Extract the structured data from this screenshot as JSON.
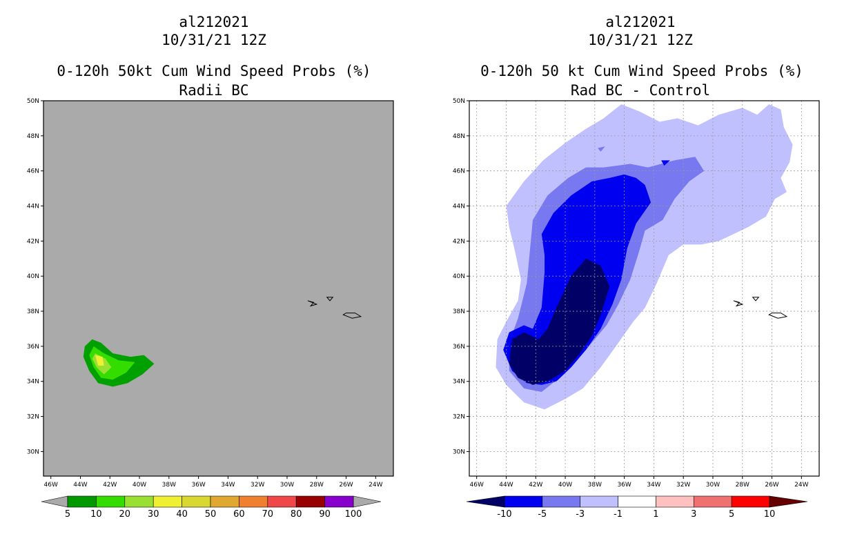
{
  "chart_data": [
    {
      "type": "filled-contour-map",
      "storm_id": "al212021",
      "valid_time": "10/31/21 12Z",
      "title": "0-120h 50kt Cum Wind Speed Probs (%)",
      "subtitle": "Radii BC",
      "lat_ticks": [
        "30N",
        "32N",
        "34N",
        "36N",
        "38N",
        "40N",
        "42N",
        "44N",
        "46N",
        "48N",
        "50N"
      ],
      "lon_ticks": [
        "46W",
        "44W",
        "42W",
        "40W",
        "38W",
        "36W",
        "34W",
        "32W",
        "30W",
        "28W",
        "26W",
        "24W"
      ],
      "lon_range_deg_w": [
        46.5,
        22.8
      ],
      "lat_range_deg_n": [
        28.6,
        50.0
      ],
      "colorbar": {
        "labels": [
          "5",
          "10",
          "20",
          "30",
          "40",
          "50",
          "60",
          "70",
          "80",
          "90",
          "100"
        ],
        "colors": [
          "#009900",
          "#33dd00",
          "#99e033",
          "#f0f033",
          "#d8d830",
          "#e0a830",
          "#f08030",
          "#f04848",
          "#990000",
          "#8800cc"
        ],
        "end_color": "#aaaaaa"
      },
      "contours": [
        {
          "level": 5,
          "color": "#00a000",
          "points": [
            [
              43.2,
              36.4
            ],
            [
              42.6,
              36.2
            ],
            [
              41.8,
              35.6
            ],
            [
              40.6,
              35.4
            ],
            [
              39.7,
              35.5
            ],
            [
              39.0,
              35.0
            ],
            [
              39.8,
              34.4
            ],
            [
              40.8,
              33.9
            ],
            [
              41.8,
              33.7
            ],
            [
              42.8,
              33.9
            ],
            [
              43.4,
              34.6
            ],
            [
              43.8,
              35.4
            ],
            [
              43.7,
              36.0
            ]
          ]
        },
        {
          "level": 10,
          "color": "#33dd00",
          "points": [
            [
              43.1,
              36.0
            ],
            [
              42.4,
              35.6
            ],
            [
              41.4,
              35.2
            ],
            [
              40.3,
              35.1
            ],
            [
              40.9,
              34.5
            ],
            [
              41.8,
              34.1
            ],
            [
              42.6,
              34.2
            ],
            [
              43.1,
              34.8
            ],
            [
              43.4,
              35.5
            ]
          ]
        },
        {
          "level": 20,
          "color": "#99e033",
          "points": [
            [
              43.0,
              35.6
            ],
            [
              42.3,
              35.3
            ],
            [
              41.9,
              34.8
            ],
            [
              42.4,
              34.4
            ],
            [
              42.9,
              34.8
            ],
            [
              43.2,
              35.3
            ]
          ]
        },
        {
          "level": 30,
          "color": "#f0f033",
          "points": [
            [
              43.0,
              35.5
            ],
            [
              42.5,
              35.4
            ],
            [
              42.4,
              34.9
            ],
            [
              42.8,
              34.9
            ]
          ]
        }
      ]
    },
    {
      "type": "filled-contour-map",
      "storm_id": "al212021",
      "valid_time": "10/31/21 12Z",
      "title": "0-120h 50 kt Cum Wind Speed Probs (%)",
      "subtitle": "Rad BC - Control",
      "lat_ticks": [
        "30N",
        "32N",
        "34N",
        "36N",
        "38N",
        "40N",
        "42N",
        "44N",
        "46N",
        "48N",
        "50N"
      ],
      "lon_ticks": [
        "46W",
        "44W",
        "42W",
        "40W",
        "38W",
        "36W",
        "34W",
        "32W",
        "30W",
        "28W",
        "26W",
        "24W"
      ],
      "lon_range_deg_w": [
        46.5,
        22.8
      ],
      "lat_range_deg_n": [
        28.6,
        50.0
      ],
      "grid": true,
      "colorbar": {
        "labels": [
          "-10",
          "-5",
          "-3",
          "-1",
          "1",
          "3",
          "5",
          "10"
        ],
        "colors": [
          "#0000f0",
          "#7878f0",
          "#c0c0ff",
          "#ffffff",
          "#ffc0c0",
          "#f07070",
          "#ff0000"
        ],
        "low_end_color": "#000066",
        "high_end_color": "#660000"
      },
      "contours": [
        {
          "level": -1,
          "color": "#c0c0ff",
          "points": [
            [
              44.0,
              44.0
            ],
            [
              42.8,
              45.4
            ],
            [
              41.5,
              46.6
            ],
            [
              40.0,
              47.6
            ],
            [
              38.6,
              48.4
            ],
            [
              37.4,
              49.0
            ],
            [
              36.2,
              49.8
            ],
            [
              35.0,
              49.4
            ],
            [
              33.6,
              48.8
            ],
            [
              32.4,
              49.0
            ],
            [
              31.0,
              48.6
            ],
            [
              29.6,
              49.2
            ],
            [
              28.0,
              49.6
            ],
            [
              27.0,
              49.2
            ],
            [
              26.2,
              49.8
            ],
            [
              25.4,
              49.5
            ],
            [
              25.2,
              48.5
            ],
            [
              24.6,
              47.5
            ],
            [
              24.8,
              46.5
            ],
            [
              25.4,
              45.6
            ],
            [
              25.0,
              44.8
            ],
            [
              25.8,
              44.4
            ],
            [
              26.4,
              43.4
            ],
            [
              27.6,
              42.8
            ],
            [
              28.6,
              42.4
            ],
            [
              29.6,
              42.0
            ],
            [
              30.8,
              41.8
            ],
            [
              32.0,
              41.8
            ],
            [
              33.0,
              41.2
            ],
            [
              33.8,
              39.6
            ],
            [
              34.6,
              38.2
            ],
            [
              35.4,
              37.4
            ],
            [
              36.4,
              36.2
            ],
            [
              37.6,
              34.8
            ],
            [
              38.8,
              33.6
            ],
            [
              40.0,
              33.0
            ],
            [
              41.4,
              32.4
            ],
            [
              42.8,
              32.8
            ],
            [
              44.0,
              33.8
            ],
            [
              44.7,
              34.8
            ],
            [
              44.6,
              36.4
            ],
            [
              44.0,
              37.4
            ],
            [
              43.2,
              38.6
            ],
            [
              43.0,
              39.8
            ],
            [
              43.4,
              41.4
            ],
            [
              43.8,
              42.8
            ]
          ]
        },
        {
          "level": -3,
          "color": "#7878f0",
          "points": [
            [
              42.2,
              43.2
            ],
            [
              41.2,
              44.6
            ],
            [
              39.8,
              45.6
            ],
            [
              38.6,
              46.2
            ],
            [
              37.4,
              46.2
            ],
            [
              35.6,
              46.4
            ],
            [
              34.4,
              46.2
            ],
            [
              32.6,
              46.6
            ],
            [
              31.2,
              46.8
            ],
            [
              30.6,
              46.0
            ],
            [
              31.6,
              45.4
            ],
            [
              32.6,
              44.4
            ],
            [
              33.4,
              43.2
            ],
            [
              34.6,
              42.6
            ],
            [
              35.0,
              41.4
            ],
            [
              35.6,
              39.8
            ],
            [
              36.4,
              38.4
            ],
            [
              37.2,
              37.2
            ],
            [
              38.2,
              36.2
            ],
            [
              39.2,
              35.2
            ],
            [
              40.4,
              34.2
            ],
            [
              41.6,
              33.4
            ],
            [
              42.8,
              33.6
            ],
            [
              43.8,
              34.6
            ],
            [
              43.8,
              36.2
            ],
            [
              43.2,
              37.6
            ],
            [
              42.6,
              39.6
            ],
            [
              42.4,
              41.4
            ]
          ]
        },
        {
          "level": -5,
          "color": "#0000f0",
          "points": [
            [
              41.6,
              42.4
            ],
            [
              40.8,
              43.6
            ],
            [
              39.6,
              44.6
            ],
            [
              38.2,
              45.4
            ],
            [
              37.0,
              45.6
            ],
            [
              36.0,
              45.8
            ],
            [
              35.2,
              45.6
            ],
            [
              34.6,
              45.2
            ],
            [
              34.2,
              44.2
            ],
            [
              35.2,
              43.0
            ],
            [
              35.8,
              41.6
            ],
            [
              36.2,
              39.8
            ],
            [
              36.8,
              38.4
            ],
            [
              37.6,
              37.0
            ],
            [
              38.6,
              35.8
            ],
            [
              39.6,
              34.8
            ],
            [
              40.6,
              34.0
            ],
            [
              41.6,
              33.8
            ],
            [
              42.6,
              33.9
            ],
            [
              43.6,
              34.6
            ],
            [
              44.2,
              35.8
            ],
            [
              43.8,
              36.8
            ],
            [
              42.8,
              37.2
            ],
            [
              42.2,
              37.0
            ],
            [
              41.6,
              38.2
            ],
            [
              41.4,
              40.2
            ],
            [
              41.4,
              41.2
            ]
          ]
        },
        {
          "level": -10,
          "color": "#000066",
          "points": [
            [
              39.6,
              40.0
            ],
            [
              38.6,
              41.0
            ],
            [
              37.6,
              40.6
            ],
            [
              37.0,
              39.4
            ],
            [
              37.6,
              37.8
            ],
            [
              38.2,
              36.6
            ],
            [
              39.0,
              35.6
            ],
            [
              40.0,
              34.6
            ],
            [
              41.2,
              34.0
            ],
            [
              42.2,
              33.8
            ],
            [
              43.2,
              34.2
            ],
            [
              43.8,
              35.0
            ],
            [
              43.6,
              36.4
            ],
            [
              42.8,
              36.8
            ],
            [
              41.8,
              36.4
            ],
            [
              41.2,
              37.0
            ],
            [
              40.6,
              38.2
            ]
          ]
        },
        {
          "level": -3,
          "color": "#7878f0",
          "points": [
            [
              37.8,
              47.3
            ],
            [
              37.3,
              47.4
            ],
            [
              37.6,
              47.1
            ]
          ]
        },
        {
          "level": -5,
          "color": "#0000f0",
          "points": [
            [
              33.5,
              46.6
            ],
            [
              32.9,
              46.6
            ],
            [
              33.3,
              46.3
            ]
          ]
        }
      ]
    }
  ],
  "islands": [
    {
      "points": [
        [
          28.6,
          38.6
        ],
        [
          28.2,
          38.5
        ],
        [
          28.4,
          38.3
        ],
        [
          28.0,
          38.4
        ]
      ]
    },
    {
      "points": [
        [
          27.3,
          38.8
        ],
        [
          26.9,
          38.8
        ],
        [
          27.1,
          38.6
        ]
      ]
    },
    {
      "points": [
        [
          26.0,
          37.9
        ],
        [
          25.4,
          37.9
        ],
        [
          25.0,
          37.7
        ],
        [
          25.6,
          37.6
        ],
        [
          26.2,
          37.8
        ]
      ]
    }
  ],
  "panels": [
    {
      "storm_id": "al212021",
      "valid_time": "10/31/21 12Z",
      "title": "0-120h 50kt Cum Wind Speed Probs (%)",
      "subtitle": "Radii BC"
    },
    {
      "storm_id": "al212021",
      "valid_time": "10/31/21 12Z",
      "title": "0-120h 50 kt Cum Wind Speed Probs (%)",
      "subtitle": "Rad BC - Control"
    }
  ]
}
